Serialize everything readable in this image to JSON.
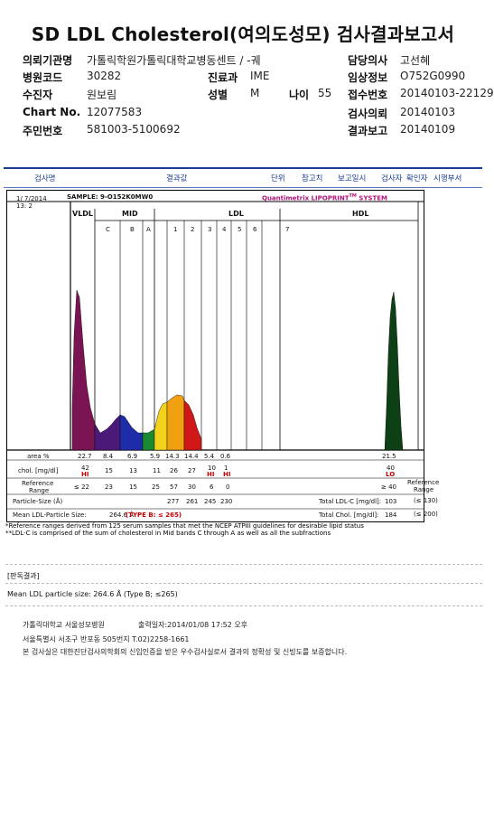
{
  "title": "SD LDL Cholesterol(여의도성모) 검사결과보고서",
  "header": {
    "left": [
      {
        "label": "의뢰기관명",
        "value": "가톨릭학원가톨릭대학교병동센트 / -궤"
      },
      {
        "label": "병원코드",
        "value": "30282"
      },
      {
        "label": "수진자",
        "value": "원보림"
      },
      {
        "label": "Chart No.",
        "value": "12077583"
      },
      {
        "label": "주민번호",
        "value": "581003-5100692"
      }
    ],
    "dept": {
      "label": "진료과",
      "value": "IME"
    },
    "sex": {
      "label": "성별",
      "value": "M"
    },
    "age": {
      "label": "나이",
      "value": "55"
    },
    "right": [
      {
        "label": "담당의사",
        "value": "고선혜"
      },
      {
        "label": "임상정보",
        "value": "O752G0990"
      },
      {
        "label": "접수번호",
        "value": "20140103-22129"
      },
      {
        "label": "검사의뢰",
        "value": "20140103"
      },
      {
        "label": "결과보고",
        "value": "20140109"
      }
    ]
  },
  "columns": [
    "검사명",
    "결과값",
    "단위",
    "참고치",
    "보고일시",
    "검사자",
    "확인자",
    "시행부서"
  ],
  "report": {
    "date": "1/ 7/2014",
    "run": "13: 2",
    "sample": "SAMPLE:   9-O152K0MW0",
    "brand": "Quantimetrix LIPOPRINT",
    "brand_tm": "TM",
    "brand_suffix": " SYSTEM",
    "groups": [
      "VLDL",
      "MID",
      "LDL",
      "HDL"
    ],
    "bands": [
      "C",
      "B",
      "A",
      "1",
      "2",
      "3",
      "4",
      "5",
      "6",
      "7"
    ],
    "row_labels": {
      "area": "area %",
      "chol": "chol. [mg/dl]",
      "ref1": "Reference",
      "ref2": "Range",
      "psize": "Particle-Size (Å)",
      "mean": "Mean LDL-Particle Size:"
    },
    "area": [
      "22.7",
      "8.4",
      "6.9",
      "5.9",
      "14.3",
      "14.4",
      "5.4",
      "0.6",
      "21.5"
    ],
    "chol": [
      "42",
      "15",
      "13",
      "11",
      "26",
      "27",
      "10",
      "1",
      "40"
    ],
    "flags": [
      {
        "band": "VLDL",
        "text": "HI"
      },
      {
        "band": "3",
        "text": "HI"
      },
      {
        "band": "4",
        "text": "HI"
      },
      {
        "band": "HDL",
        "text": "LO"
      }
    ],
    "ref_values": [
      "≤ 22",
      "23",
      "15",
      "25",
      "57",
      "30",
      "6",
      "0"
    ],
    "hdl_ref": "≥ 40",
    "ref_right1": "Reference",
    "ref_right2": "Range",
    "particle_sizes": [
      "277",
      "261",
      "245",
      "230"
    ],
    "mean_size": "264.6 Å",
    "mean_type": "(TYPE B: ≤ 265)",
    "total_ldl_label": "Total LDL-C [mg/dl]:",
    "total_ldl_value": "103",
    "total_ldl_ref": "(≤ 130)",
    "total_chol_label": "Total Chol. [mg/dl]:",
    "total_chol_value": "184",
    "total_chol_ref": "(≤ 200)"
  },
  "chart_data": {
    "type": "area",
    "title": "",
    "xlabel": "",
    "ylabel": "",
    "series": [
      {
        "name": "VLDL",
        "color": "#7a1452"
      },
      {
        "name": "C",
        "color": "#4b1a78"
      },
      {
        "name": "B",
        "color": "#1f2ca8"
      },
      {
        "name": "A",
        "color": "#1a8a2e"
      },
      {
        "name": "1",
        "color": "#f2d21a"
      },
      {
        "name": "2",
        "color": "#f0a010"
      },
      {
        "name": "3",
        "color": "#d01818"
      },
      {
        "name": "HDL",
        "color": "#0e4016"
      }
    ]
  },
  "notes": [
    "*Reference ranges derived from 125 serum samples that met the NCEP ATPIII guidelines for desirable lipid status",
    "**LDL-C is comprised of the sum of cholesterol in Mid bands C through A as well as all the subfractions"
  ],
  "opinion_title": "[판독결과]",
  "opinion_text": "Mean LDL particle size: 264.6 Å (Type B; ≤265)",
  "footer": {
    "org": "가톨릭대학교 서울성모병원",
    "printed": "출력일자:2014/01/08 17:52 오후",
    "address": "서울특별시 서초구 반포동 505번지 T.02)2258-1661",
    "cert": "본 검사실은 대한진단검사의학회의 신임인증을 받은 우수검사실로서 결과의 정확성 및 신빙도를 보증합니다."
  }
}
